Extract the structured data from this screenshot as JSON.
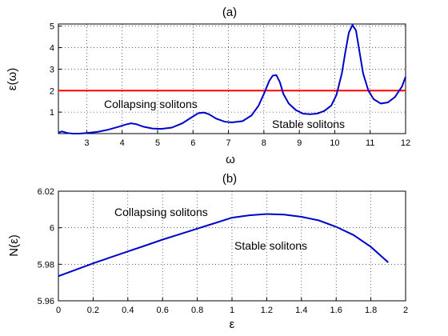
{
  "chart_data": [
    {
      "panel_label": "(a)",
      "type": "line",
      "xlabel": "ω",
      "ylabel": "ε(ω)",
      "xlim": [
        2.2,
        12
      ],
      "ylim": [
        0,
        5.1
      ],
      "xticks": [
        3,
        4,
        5,
        6,
        7,
        8,
        9,
        10,
        11,
        12
      ],
      "yticks": [
        1,
        2,
        3,
        4,
        5
      ],
      "grid": true,
      "colors": {
        "curve": "#0000cc",
        "threshold": "#ff0000"
      },
      "threshold_y": 2,
      "series": [
        {
          "x": [
            2.2,
            2.3,
            2.45,
            2.6,
            2.8,
            3.0,
            3.3,
            3.6,
            3.9,
            4.1,
            4.25,
            4.4,
            4.6,
            4.85,
            5.1,
            5.4,
            5.7,
            5.95,
            6.15,
            6.3,
            6.45,
            6.65,
            6.9,
            7.1,
            7.4,
            7.65,
            7.85,
            8.0,
            8.15,
            8.25,
            8.35,
            8.45,
            8.55,
            8.7,
            8.9,
            9.1,
            9.3,
            9.5,
            9.7,
            9.9,
            10.05,
            10.2,
            10.3,
            10.4,
            10.5,
            10.6,
            10.7,
            10.8,
            10.95,
            11.1,
            11.3,
            11.5,
            11.7,
            11.9,
            12.0
          ],
          "y": [
            0.05,
            0.1,
            0.03,
            0.0,
            0.0,
            0.03,
            0.08,
            0.18,
            0.32,
            0.42,
            0.48,
            0.44,
            0.32,
            0.24,
            0.22,
            0.28,
            0.48,
            0.75,
            0.95,
            0.98,
            0.9,
            0.7,
            0.55,
            0.52,
            0.58,
            0.85,
            1.3,
            1.85,
            2.45,
            2.7,
            2.72,
            2.4,
            1.85,
            1.4,
            1.1,
            0.93,
            0.9,
            0.93,
            1.05,
            1.3,
            1.8,
            2.8,
            3.8,
            4.7,
            5.05,
            4.8,
            3.8,
            2.8,
            2.0,
            1.6,
            1.4,
            1.45,
            1.7,
            2.2,
            2.65
          ]
        }
      ],
      "annotations": [
        "Collapsing solitons",
        "Stable solitons"
      ]
    },
    {
      "panel_label": "(b)",
      "type": "line",
      "xlabel": "ε",
      "ylabel": "N(ε)",
      "xlim": [
        0,
        2
      ],
      "ylim": [
        5.96,
        6.02
      ],
      "xticks": [
        "0",
        "0.2",
        "0.4",
        "0.6",
        "0.8",
        "1",
        "1.2",
        "1.4",
        "1.6",
        "1.8",
        "2"
      ],
      "yticks": [
        "5.96",
        "5.98",
        "6",
        "6.02"
      ],
      "grid": true,
      "colors": {
        "curve": "#0000cc"
      },
      "series": [
        {
          "x": [
            0,
            0.1,
            0.2,
            0.3,
            0.4,
            0.5,
            0.6,
            0.7,
            0.8,
            0.9,
            1.0,
            1.1,
            1.2,
            1.3,
            1.4,
            1.5,
            1.6,
            1.7,
            1.8,
            1.9
          ],
          "y": [
            5.9735,
            5.977,
            5.9805,
            5.9838,
            5.987,
            5.9902,
            5.9935,
            5.9965,
            5.9995,
            6.0025,
            6.0055,
            6.0068,
            6.0075,
            6.0072,
            6.006,
            6.004,
            6.0005,
            5.996,
            5.9895,
            5.981
          ]
        }
      ],
      "annotations": [
        "Collapsing solitons",
        "Stable solitons"
      ]
    }
  ]
}
